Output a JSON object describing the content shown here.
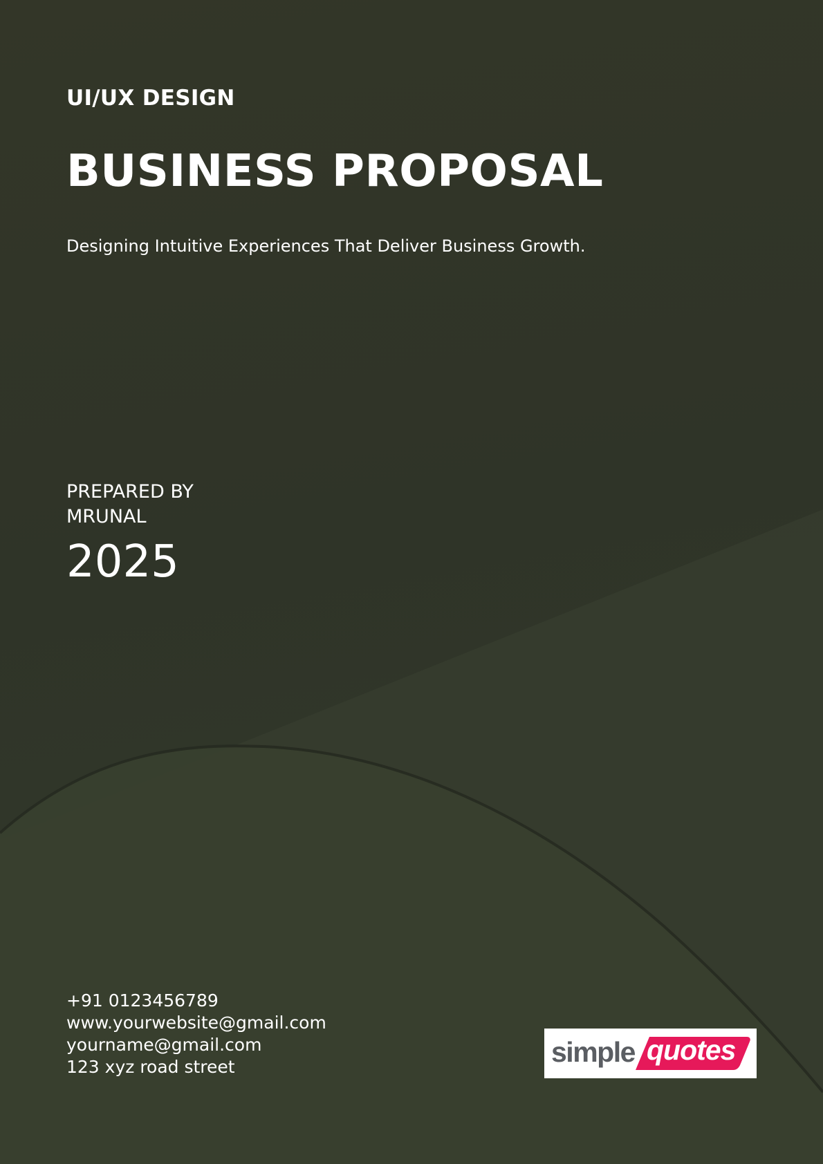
{
  "cover": {
    "category": "UI/UX DESIGN",
    "title": "BUSINESS PROPOSAL",
    "subtitle": "Designing Intuitive Experiences That Deliver Business Growth.",
    "prepared_label": "PREPARED BY",
    "prepared_name": "MRUNAL",
    "year": "2025"
  },
  "contact": {
    "phone": "+91 0123456789",
    "website": "www.yourwebsite@gmail.com",
    "email": "yourname@gmail.com",
    "address": "123 xyz road street"
  },
  "logo": {
    "word1": "simple",
    "word2": "quotes",
    "accent_color": "#e6195a"
  },
  "colors": {
    "background": "#323628",
    "text": "#ffffff"
  }
}
